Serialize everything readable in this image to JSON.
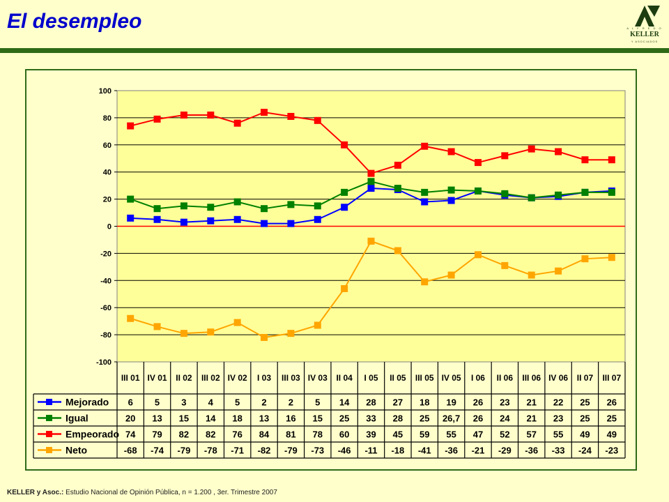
{
  "slide": {
    "title": "El desempleo",
    "footer_source": "KELLER y Asoc.:",
    "footer_text": " Estudio Nacional de Opinión Pública, n = 1.200 , 3er. Trimestre 2007"
  },
  "logo": {
    "top": "A L F R E D O",
    "name": "KELLER",
    "bottom": "Y ASOCIADOS",
    "color": "#1d3d10"
  },
  "colors": {
    "background": "#ffffcc",
    "plot_area": "#ffff99",
    "accent": "#2f6b17",
    "zero_line": "#ff0000"
  },
  "chart_data": {
    "type": "line",
    "title": "",
    "xlabel": "",
    "ylabel": "",
    "ylim": [
      -100,
      100
    ],
    "yticks": [
      100,
      80,
      60,
      40,
      20,
      0,
      -20,
      -40,
      -60,
      -80,
      -100
    ],
    "grid": true,
    "legend": "data-table-left",
    "categories": [
      "III 01",
      "IV 01",
      "II 02",
      "III 02",
      "IV 02",
      "I 03",
      "III 03",
      "IV 03",
      "II 04",
      "I 05",
      "II 05",
      "III 05",
      "IV 05",
      "I 06",
      "II 06",
      "III 06",
      "IV 06",
      "II 07",
      "III 07"
    ],
    "series": [
      {
        "name": "Mejorado",
        "color": "#0000ff",
        "values": [
          6,
          5,
          3,
          4,
          5,
          2,
          2,
          5,
          14,
          28,
          27,
          18,
          19,
          26,
          23,
          21,
          22,
          25,
          26
        ],
        "labels": [
          "6",
          "5",
          "3",
          "4",
          "5",
          "2",
          "2",
          "5",
          "14",
          "28",
          "27",
          "18",
          "19",
          "26",
          "23",
          "21",
          "22",
          "25",
          "26"
        ]
      },
      {
        "name": "Igual",
        "color": "#008000",
        "values": [
          20,
          13,
          15,
          14,
          18,
          13,
          16,
          15,
          25,
          33,
          28,
          25,
          26.7,
          26,
          24,
          21,
          23,
          25,
          25
        ],
        "labels": [
          "20",
          "13",
          "15",
          "14",
          "18",
          "13",
          "16",
          "15",
          "25",
          "33",
          "28",
          "25",
          "26,7",
          "26",
          "24",
          "21",
          "23",
          "25",
          "25"
        ]
      },
      {
        "name": "Empeorado",
        "color": "#ff0000",
        "values": [
          74,
          79,
          82,
          82,
          76,
          84,
          81,
          78,
          60,
          39,
          45,
          59,
          55,
          47,
          52,
          57,
          55,
          49,
          49
        ],
        "labels": [
          "74",
          "79",
          "82",
          "82",
          "76",
          "84",
          "81",
          "78",
          "60",
          "39",
          "45",
          "59",
          "55",
          "47",
          "52",
          "57",
          "55",
          "49",
          "49"
        ]
      },
      {
        "name": "Neto",
        "color": "#ffa500",
        "values": [
          -68,
          -74,
          -79,
          -78,
          -71,
          -82,
          -79,
          -73,
          -46,
          -11,
          -18,
          -41,
          -36,
          -21,
          -29,
          -36,
          -33,
          -24,
          -23
        ],
        "labels": [
          "-68",
          "-74",
          "-79",
          "-78",
          "-71",
          "-82",
          "-79",
          "-73",
          "-46",
          "-11",
          "-18",
          "-41",
          "-36",
          "-21",
          "-29",
          "-36",
          "-33",
          "-24",
          "-23"
        ]
      }
    ]
  }
}
